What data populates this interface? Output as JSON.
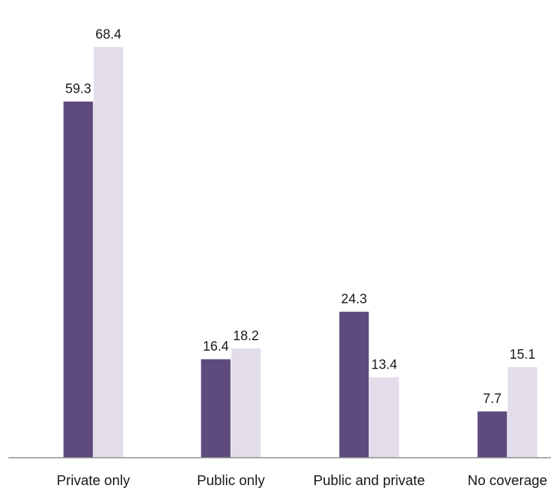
{
  "chart_data": {
    "type": "bar",
    "categories": [
      "Private only",
      "Public only",
      "Public and private",
      "No coverage"
    ],
    "series": [
      {
        "values": [
          59.3,
          16.4,
          24.3,
          7.7
        ],
        "color": "#5e4a7c"
      },
      {
        "values": [
          68.4,
          18.2,
          13.4,
          15.1
        ],
        "color": "#e3ddeb"
      }
    ],
    "ylim": [
      0,
      72
    ],
    "grid": false,
    "data_labels": true
  }
}
